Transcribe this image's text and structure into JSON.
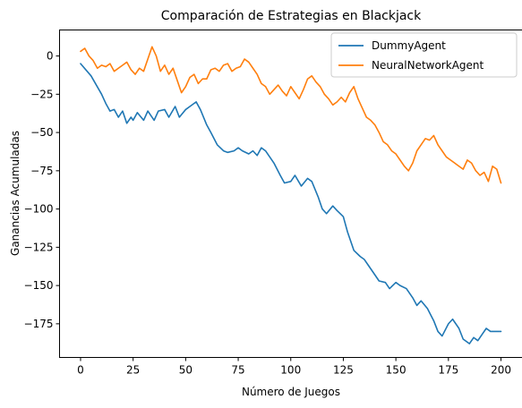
{
  "chart_data": {
    "type": "line",
    "title": "Comparación de Estrategias en Blackjack",
    "xlabel": "Número de Juegos",
    "ylabel": "Ganancias Acumuladas",
    "xlim": [
      -10,
      210
    ],
    "ylim": [
      -197,
      17
    ],
    "xticks": [
      0,
      25,
      50,
      75,
      100,
      125,
      150,
      175,
      200
    ],
    "yticks": [
      0,
      -25,
      -50,
      -75,
      -100,
      -125,
      -150,
      -175
    ],
    "grid": false,
    "legend_position": "top-right",
    "series": [
      {
        "name": "DummyAgent",
        "color": "#1f77b4",
        "x": [
          0,
          5,
          10,
          12,
          14,
          16,
          18,
          20,
          22,
          24,
          25,
          27,
          30,
          32,
          35,
          37,
          40,
          42,
          45,
          47,
          50,
          52,
          55,
          57,
          60,
          62,
          65,
          68,
          70,
          73,
          75,
          77,
          80,
          82,
          84,
          86,
          88,
          90,
          92,
          95,
          97,
          100,
          102,
          105,
          108,
          110,
          113,
          115,
          117,
          120,
          122,
          125,
          127,
          130,
          133,
          135,
          137,
          140,
          142,
          145,
          147,
          150,
          152,
          155,
          158,
          160,
          162,
          165,
          168,
          170,
          172,
          175,
          177,
          180,
          182,
          185,
          187,
          189,
          191,
          193,
          195,
          197,
          200
        ],
        "values": [
          -5,
          -13,
          -25,
          -31,
          -36,
          -35,
          -40,
          -36,
          -44,
          -40,
          -42,
          -37,
          -42,
          -36,
          -42,
          -36,
          -35,
          -40,
          -33,
          -40,
          -35,
          -33,
          -30,
          -35,
          -45,
          -50,
          -58,
          -62,
          -63,
          -62,
          -60,
          -62,
          -64,
          -62,
          -65,
          -60,
          -62,
          -66,
          -70,
          -78,
          -83,
          -82,
          -78,
          -85,
          -80,
          -82,
          -92,
          -100,
          -103,
          -98,
          -101,
          -105,
          -115,
          -127,
          -131,
          -133,
          -137,
          -143,
          -147,
          -148,
          -152,
          -148,
          -150,
          -152,
          -158,
          -163,
          -160,
          -165,
          -173,
          -180,
          -183,
          -175,
          -172,
          -178,
          -185,
          -188,
          -184,
          -186,
          -182,
          -178,
          -180,
          -180,
          -180
        ]
      },
      {
        "name": "NeuralNetworkAgent",
        "color": "#ff7f0e",
        "x": [
          0,
          2,
          4,
          6,
          8,
          10,
          12,
          14,
          16,
          18,
          20,
          22,
          24,
          26,
          28,
          30,
          32,
          34,
          36,
          38,
          40,
          42,
          44,
          46,
          48,
          50,
          52,
          54,
          56,
          58,
          60,
          62,
          64,
          66,
          68,
          70,
          72,
          74,
          76,
          78,
          80,
          82,
          84,
          86,
          88,
          90,
          92,
          94,
          96,
          98,
          100,
          102,
          104,
          106,
          108,
          110,
          112,
          114,
          116,
          118,
          120,
          122,
          124,
          126,
          128,
          130,
          132,
          134,
          136,
          138,
          140,
          142,
          144,
          146,
          148,
          150,
          152,
          154,
          156,
          158,
          160,
          162,
          164,
          166,
          168,
          170,
          172,
          174,
          176,
          178,
          180,
          182,
          184,
          186,
          188,
          190,
          192,
          194,
          196,
          198,
          200
        ],
        "values": [
          3,
          5,
          0,
          -3,
          -8,
          -6,
          -7,
          -5,
          -10,
          -8,
          -6,
          -4,
          -9,
          -12,
          -8,
          -10,
          -2,
          6,
          0,
          -10,
          -6,
          -12,
          -8,
          -16,
          -24,
          -20,
          -14,
          -12,
          -18,
          -15,
          -15,
          -9,
          -8,
          -10,
          -6,
          -5,
          -10,
          -8,
          -7,
          -2,
          -4,
          -8,
          -12,
          -18,
          -20,
          -25,
          -22,
          -19,
          -23,
          -26,
          -20,
          -24,
          -28,
          -22,
          -15,
          -13,
          -17,
          -20,
          -25,
          -28,
          -32,
          -30,
          -27,
          -30,
          -24,
          -20,
          -28,
          -34,
          -40,
          -42,
          -45,
          -50,
          -56,
          -58,
          -62,
          -64,
          -68,
          -72,
          -75,
          -70,
          -62,
          -58,
          -54,
          -55,
          -52,
          -58,
          -62,
          -66,
          -68,
          -70,
          -72,
          -74,
          -68,
          -70,
          -75,
          -78,
          -76,
          -82,
          -72,
          -74,
          -83
        ]
      }
    ]
  }
}
